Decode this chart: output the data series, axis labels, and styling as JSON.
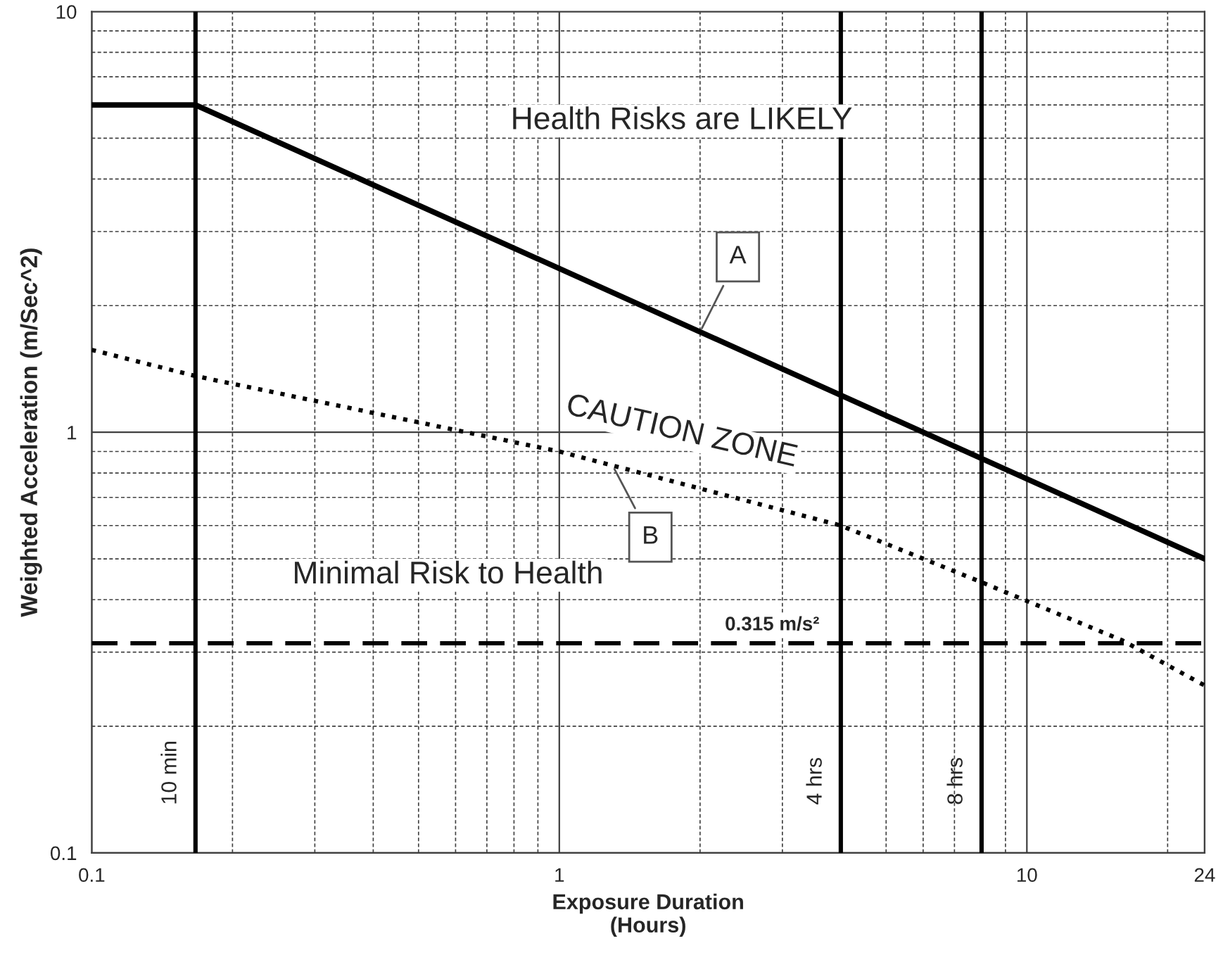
{
  "chart_data": {
    "type": "line",
    "xlabel": "Exposure Duration\n(Hours)",
    "ylabel": "Weighted Acceleration (m/Sec^2)",
    "log": "xy",
    "xlim": [
      0.1,
      24
    ],
    "ylim": [
      0.1,
      10
    ],
    "xticks": [
      0.1,
      1,
      10,
      24
    ],
    "yticks": [
      0.1,
      1,
      10
    ],
    "grid": true,
    "legend": false,
    "series": [
      {
        "name": "A",
        "color": "#000000",
        "line_style": "solid",
        "x": [
          0.1,
          0.1667,
          24
        ],
        "values": [
          6,
          6,
          0.5
        ]
      },
      {
        "name": "B",
        "color": "#000000",
        "line_style": "dotted",
        "x": [
          0.1,
          0.1667,
          1,
          4,
          8,
          16,
          24
        ],
        "values": [
          1.57,
          1.36,
          0.9,
          0.6,
          0.44,
          0.32,
          0.25
        ]
      }
    ],
    "ref_lines": [
      {
        "axis": "x",
        "value": 0.1667,
        "label": "10 min",
        "line_style": "solid"
      },
      {
        "axis": "x",
        "value": 4,
        "label": "4 hrs",
        "line_style": "solid"
      },
      {
        "axis": "x",
        "value": 8,
        "label": "8 hrs",
        "line_style": "solid"
      },
      {
        "axis": "y",
        "value": 0.315,
        "label": "0.315 m/s²",
        "line_style": "dashed"
      }
    ],
    "annotations": [
      "Health Risks are LIKELY",
      "CAUTION ZONE",
      "Minimal Risk to Health"
    ]
  }
}
